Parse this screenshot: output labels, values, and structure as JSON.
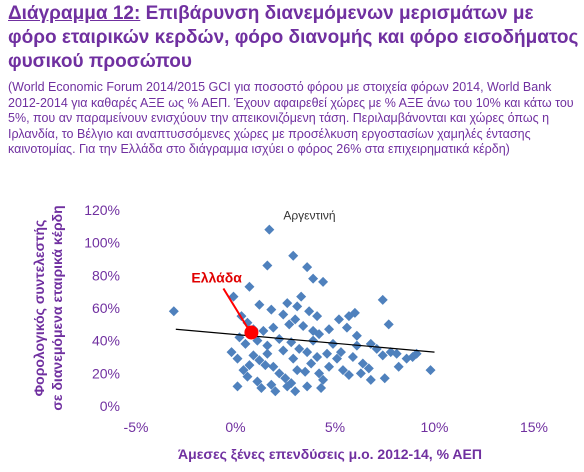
{
  "header": {
    "label": "Διάγραμμα 12:",
    "title": "Επιβάρυνση διανεμόμενων μερισμάτων με φόρο εταιρικών κερδών, φόρο διανομής και φόρο εισοδήματος φυσικού προσώπου",
    "note": "(World Economic Forum 2014/2015 GCI για ποσοστό φόρου με στοιχεία φόρων 2014, World Bank 2012-2014 για καθαρές ΑΞΕ ως % ΑΕΠ. Έχουν αφαιρεθεί χώρες με % ΑΞΕ άνω του 10% και κάτω του 5%, που αν παραμείνουν ενισχύουν την απεικονιζόμενη τάση. Περιλαμβάνονται και χώρες όπως η Ιρλανδία, το Βέλγιο και αναπτυσσόμενες χώρες με προσέλκυση εργοστασίων χαμηλές έντασης καινοτομίας. Για την Ελλάδα στο διάγραμμα ισχύει ο φόρος 26% στα επιχειρηματικά κέρδη)"
  },
  "colors": {
    "title": "#7030A0",
    "points": "#4F81BD",
    "highlight": "#FF0000",
    "trendline": "#000000"
  },
  "chart_data": {
    "type": "scatter",
    "xlabel": "Άμεσες ξένες επενδύσεις μ.ο. 2012-14, % ΑΕΠ",
    "ylabel": "Φορολογικός συντελεστής σε διανεμόμενα εταιρικά κέρδη",
    "xlim": [
      -5,
      15
    ],
    "ylim": [
      0,
      120
    ],
    "x_ticks": [
      "-5%",
      "0%",
      "5%",
      "10%",
      "15%"
    ],
    "y_ticks": [
      "0%",
      "20%",
      "40%",
      "60%",
      "80%",
      "100%",
      "120%"
    ],
    "grid": false,
    "trendline": {
      "x": [
        -3,
        10
      ],
      "y": [
        47,
        33
      ]
    },
    "annotations": [
      {
        "text": "Αργεντινή",
        "x": 1.8,
        "y": 108
      },
      {
        "text": "Ελλάδα",
        "x": 0.8,
        "y": 45,
        "highlight": true
      }
    ],
    "series": [
      {
        "points": [
          [
            -3.1,
            58
          ],
          [
            1.7,
            108
          ],
          [
            2.9,
            92
          ],
          [
            1.6,
            86
          ],
          [
            3.6,
            85
          ],
          [
            4.4,
            76
          ],
          [
            3.9,
            78
          ],
          [
            -0.1,
            67
          ],
          [
            0.7,
            73
          ],
          [
            0.3,
            55
          ],
          [
            1.2,
            62
          ],
          [
            1.8,
            59
          ],
          [
            2.4,
            56
          ],
          [
            2.6,
            63
          ],
          [
            3.1,
            61
          ],
          [
            3.3,
            67
          ],
          [
            3.7,
            58
          ],
          [
            4.1,
            55
          ],
          [
            5.2,
            53
          ],
          [
            5.7,
            55
          ],
          [
            6.0,
            57
          ],
          [
            7.4,
            65
          ],
          [
            7.7,
            50
          ],
          [
            0.6,
            51
          ],
          [
            0.9,
            47
          ],
          [
            1.4,
            46
          ],
          [
            1.9,
            48
          ],
          [
            2.7,
            50
          ],
          [
            3.0,
            53
          ],
          [
            3.4,
            49
          ],
          [
            3.9,
            46
          ],
          [
            4.2,
            44
          ],
          [
            4.7,
            47
          ],
          [
            5.6,
            48
          ],
          [
            6.1,
            43
          ],
          [
            6.8,
            38
          ],
          [
            7.1,
            35
          ],
          [
            7.8,
            33
          ],
          [
            8.1,
            32
          ],
          [
            8.6,
            29
          ],
          [
            8.9,
            30
          ],
          [
            9.8,
            22
          ],
          [
            0.2,
            42
          ],
          [
            0.5,
            38
          ],
          [
            1.1,
            40
          ],
          [
            1.6,
            37
          ],
          [
            2.2,
            41
          ],
          [
            2.8,
            39
          ],
          [
            3.2,
            35
          ],
          [
            3.6,
            33
          ],
          [
            4.1,
            30
          ],
          [
            4.6,
            32
          ],
          [
            5.1,
            29
          ],
          [
            5.3,
            33
          ],
          [
            5.9,
            30
          ],
          [
            6.4,
            26
          ],
          [
            6.7,
            23
          ],
          [
            7.4,
            31
          ],
          [
            8.2,
            24
          ],
          [
            9.1,
            32
          ],
          [
            -0.2,
            33
          ],
          [
            0.1,
            29
          ],
          [
            0.4,
            22
          ],
          [
            0.7,
            25
          ],
          [
            1.2,
            28
          ],
          [
            1.5,
            25
          ],
          [
            1.9,
            24
          ],
          [
            2.2,
            20
          ],
          [
            2.5,
            17
          ],
          [
            2.8,
            14
          ],
          [
            3.1,
            22
          ],
          [
            3.5,
            21
          ],
          [
            3.8,
            26
          ],
          [
            4.2,
            20
          ],
          [
            4.4,
            16
          ],
          [
            4.7,
            24
          ],
          [
            5.4,
            22
          ],
          [
            5.7,
            19
          ],
          [
            6.3,
            20
          ],
          [
            6.8,
            16
          ],
          [
            7.5,
            17
          ],
          [
            0.1,
            12
          ],
          [
            1.1,
            15
          ],
          [
            0.6,
            18
          ],
          [
            1.3,
            11
          ],
          [
            2.0,
            9
          ],
          [
            1.8,
            13
          ],
          [
            2.6,
            12
          ],
          [
            3.0,
            9
          ],
          [
            3.6,
            12
          ],
          [
            4.3,
            11
          ],
          [
            0.9,
            31
          ],
          [
            1.6,
            32
          ],
          [
            2.4,
            34
          ],
          [
            2.9,
            29
          ],
          [
            3.9,
            40
          ],
          [
            4.9,
            38
          ],
          [
            6.1,
            37
          ]
        ]
      },
      {
        "name": "Ελλάδα",
        "points": [
          [
            0.8,
            45
          ]
        ]
      }
    ]
  }
}
